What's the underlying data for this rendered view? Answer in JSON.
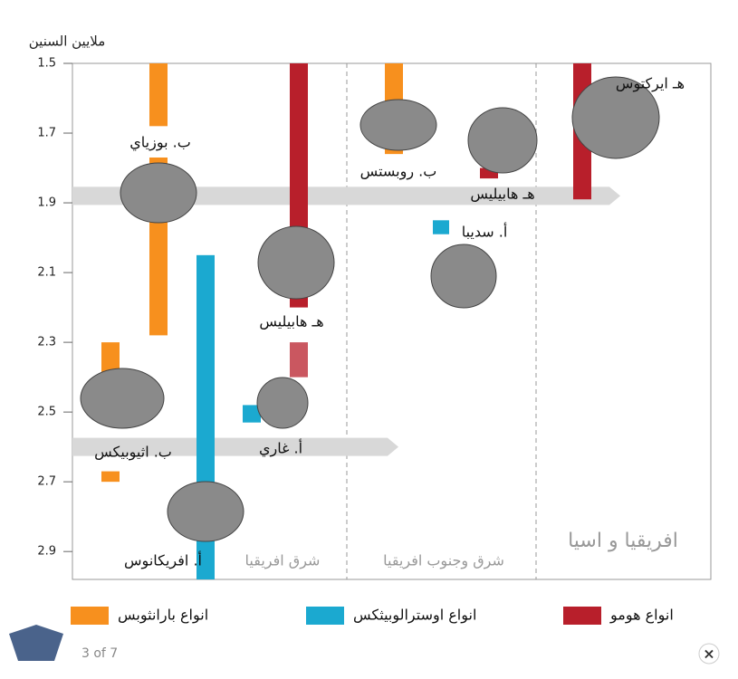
{
  "chart_data": {
    "type": "range",
    "y_label": "ملايين السنين",
    "ylim": [
      1.5,
      2.98
    ],
    "yticks": [
      1.5,
      1.7,
      1.9,
      2.1,
      2.3,
      2.5,
      2.7,
      2.9
    ],
    "series": [
      {
        "name": "انواع بارانثوبس",
        "color": "#f7901e",
        "species": [
          {
            "label": "ب. بوزياي",
            "ranges": [
              [
                1.5,
                1.68
              ],
              [
                1.77,
                2.28
              ]
            ]
          },
          {
            "label": "ب. اثيوبيكس",
            "ranges": [
              [
                2.3,
                2.42
              ],
              [
                2.67,
                2.7
              ]
            ]
          },
          {
            "label": "ب. روبستس",
            "ranges": [
              [
                1.5,
                1.62
              ],
              [
                1.73,
                1.76
              ]
            ]
          }
        ]
      },
      {
        "name": "انواع اوسترالوبيثكس",
        "color": "#1ba9d0",
        "species": [
          {
            "label": "أ. افريكانوس",
            "ranges": [
              [
                2.05,
                2.98
              ]
            ]
          },
          {
            "label": "أ. غاري",
            "ranges": [
              [
                2.48,
                2.53
              ]
            ]
          },
          {
            "label": "أ. سديبا",
            "ranges": [
              [
                1.95,
                1.99
              ]
            ]
          }
        ]
      },
      {
        "name": "انواع هومو",
        "color": "#b81f2b",
        "species": [
          {
            "label": "هـ هابيليس",
            "ranges": [
              [
                1.5,
                2.2
              ],
              [
                2.3,
                2.4
              ]
            ]
          },
          {
            "label": "هـ هابيليس",
            "ranges": [
              [
                1.8,
                1.83
              ]
            ]
          },
          {
            "label": "هـ ايركتوس",
            "ranges": [
              [
                1.5,
                1.89
              ]
            ]
          }
        ]
      }
    ],
    "arrows": [
      1.88,
      2.6
    ],
    "regions": [
      "شرق افريقيا",
      "شرق وجنوب افريقيا",
      "افريقيا و اسيا"
    ]
  },
  "gallery": {
    "counter": "3 of 7",
    "close": "×"
  }
}
